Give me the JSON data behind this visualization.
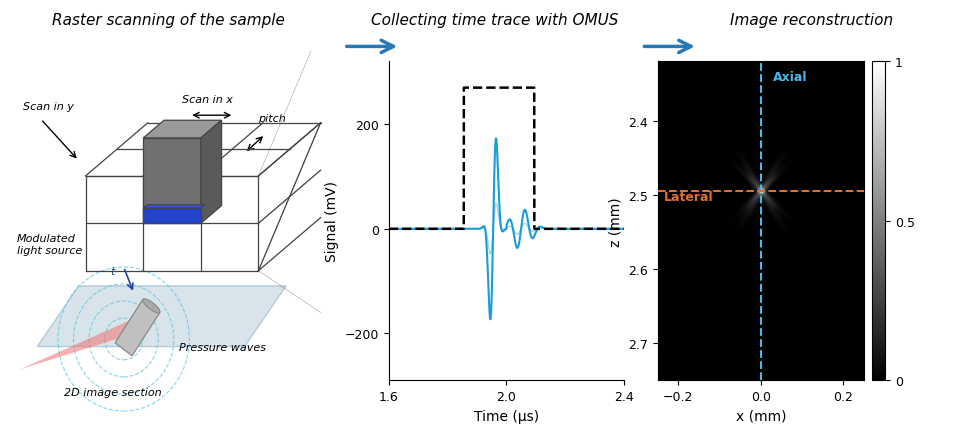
{
  "title_left": "Raster scanning of the sample",
  "title_mid": "Collecting time trace with OMUS",
  "title_right": "Image reconstruction",
  "arrow_color": "#2878b5",
  "signal_xlabel": "Time (μs)",
  "signal_ylabel": "Signal (mV)",
  "signal_xlim": [
    1.6,
    2.4
  ],
  "signal_ylim": [
    -290,
    320
  ],
  "signal_yticks": [
    -200,
    0,
    200
  ],
  "signal_xticks": [
    1.6,
    2.0,
    2.4
  ],
  "image_xlabel": "x (mm)",
  "image_ylabel": "z (mm)",
  "image_xlim": [
    -0.25,
    0.25
  ],
  "image_yticks": [
    2.4,
    2.5,
    2.6,
    2.7
  ],
  "image_xticks": [
    -0.2,
    0.0,
    0.2
  ],
  "axial_label": "Axial",
  "lateral_label": "Lateral",
  "axial_color": "#4db8e8",
  "lateral_color": "#e07030",
  "colorbar_ticks": [
    0,
    0.5,
    1
  ],
  "colorbar_labels": [
    "0",
    "0.5",
    "1"
  ],
  "blue_color": "#1a6fb5",
  "grid_color": "#444444",
  "scan_plane_color": "#b8cfd8",
  "pressure_wave_color": "#5bc8e8"
}
